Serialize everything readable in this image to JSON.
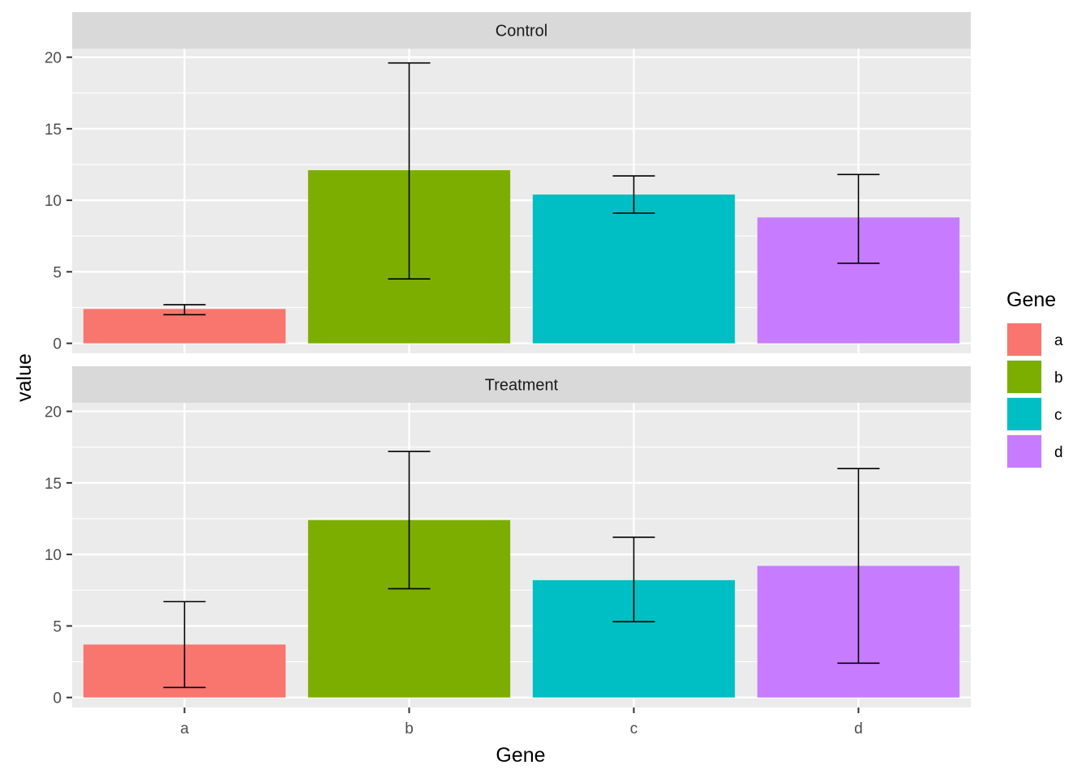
{
  "chart_data": {
    "type": "bar",
    "facet_strips": [
      "Control",
      "Treatment"
    ],
    "categories": [
      "a",
      "b",
      "c",
      "d"
    ],
    "colors": [
      "#F8766D",
      "#7CAE00",
      "#00BFC4",
      "#C77CFF"
    ],
    "panel_background": "#EBEBEB",
    "strip_background": "#D9D9D9",
    "grid": true,
    "xlabel": "Gene",
    "ylabel": "value",
    "ylim": [
      -0.7,
      20.6
    ],
    "yticks": [
      0,
      5,
      10,
      15,
      20
    ],
    "legend": {
      "title": "Gene",
      "items": [
        "a",
        "b",
        "c",
        "d"
      ],
      "position": "right"
    },
    "panels": [
      {
        "name": "Control",
        "values": [
          2.4,
          12.1,
          10.4,
          8.8
        ],
        "error_low": [
          2.0,
          4.5,
          9.1,
          5.6
        ],
        "error_high": [
          2.7,
          19.6,
          11.7,
          11.8
        ]
      },
      {
        "name": "Treatment",
        "values": [
          3.7,
          12.4,
          8.2,
          9.2
        ],
        "error_low": [
          0.7,
          7.6,
          5.3,
          2.4
        ],
        "error_high": [
          6.7,
          17.2,
          11.2,
          16.0
        ]
      }
    ]
  }
}
